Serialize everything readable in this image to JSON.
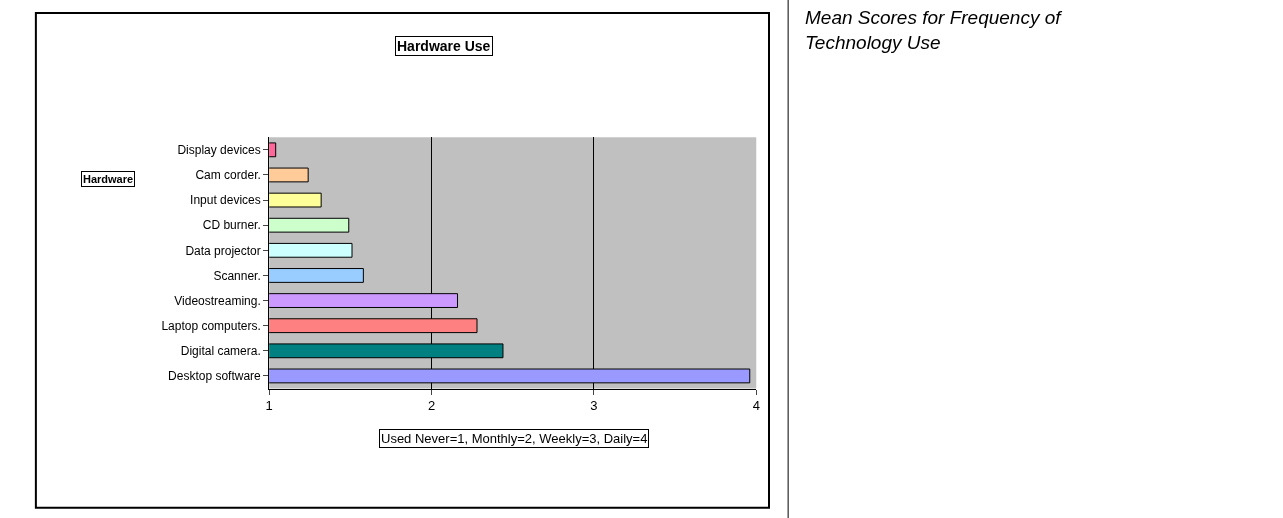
{
  "chart_data": {
    "type": "bar",
    "orientation": "horizontal",
    "title": "Hardware Use",
    "ylabel": "Hardware",
    "xlabel": "Used Never=1, Monthly=2, Weekly=3, Daily=4",
    "categories": [
      "Display devices",
      "Cam corder.",
      "Input devices",
      "CD burner.",
      "Data projector",
      "Scanner.",
      "Videostreaming.",
      "Laptop computers.",
      "Digital camera.",
      "Desktop software"
    ],
    "values": [
      1.04,
      1.24,
      1.32,
      1.49,
      1.51,
      1.58,
      2.16,
      2.28,
      2.44,
      3.96
    ],
    "colors": [
      "#ff6699",
      "#ffcc99",
      "#ffff99",
      "#ccffcc",
      "#ccffff",
      "#99ccff",
      "#cc99ff",
      "#ff8080",
      "#008080",
      "#9999ff"
    ],
    "xlim": [
      1,
      4
    ],
    "xticks": [
      1,
      2,
      3,
      4
    ],
    "grid": "x",
    "legend": false,
    "annotations": [
      "Mean Scores for Frequency of Technology Use"
    ]
  }
}
